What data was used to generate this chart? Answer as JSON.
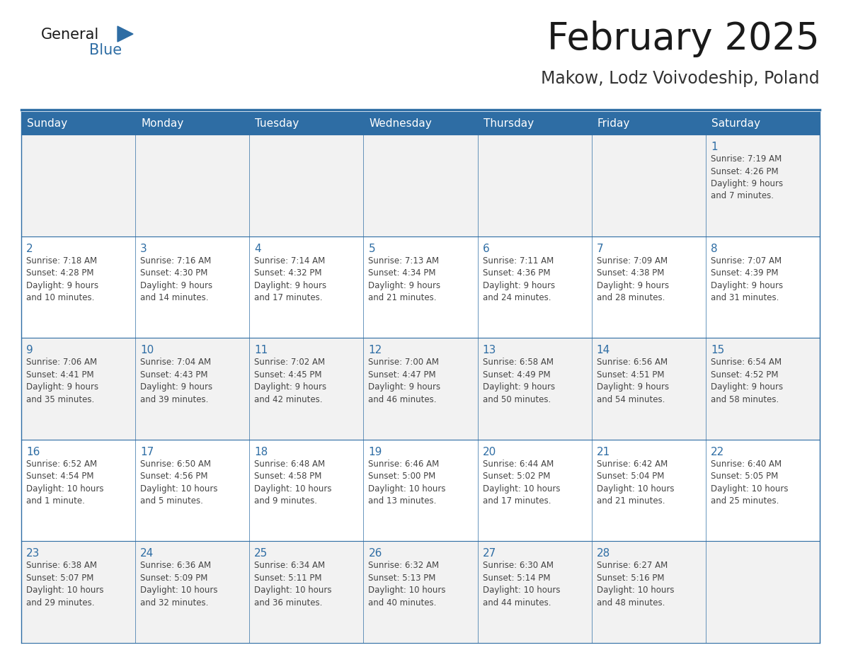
{
  "title": "February 2025",
  "subtitle": "Makow, Lodz Voivodeship, Poland",
  "days_of_week": [
    "Sunday",
    "Monday",
    "Tuesday",
    "Wednesday",
    "Thursday",
    "Friday",
    "Saturday"
  ],
  "header_bg": "#2E6DA4",
  "header_text_color": "#FFFFFF",
  "cell_bg_odd": "#F2F2F2",
  "cell_bg_even": "#FFFFFF",
  "day_number_color": "#2E6DA4",
  "cell_text_color": "#444444",
  "border_color": "#2E6DA4",
  "title_color": "#1a1a1a",
  "subtitle_color": "#333333",
  "logo_general_color": "#1a1a1a",
  "logo_blue_color": "#2E6DA4",
  "logo_triangle_color": "#2E6DA4",
  "calendar_data": [
    [
      {
        "day": null,
        "info": ""
      },
      {
        "day": null,
        "info": ""
      },
      {
        "day": null,
        "info": ""
      },
      {
        "day": null,
        "info": ""
      },
      {
        "day": null,
        "info": ""
      },
      {
        "day": null,
        "info": ""
      },
      {
        "day": 1,
        "info": "Sunrise: 7:19 AM\nSunset: 4:26 PM\nDaylight: 9 hours\nand 7 minutes."
      }
    ],
    [
      {
        "day": 2,
        "info": "Sunrise: 7:18 AM\nSunset: 4:28 PM\nDaylight: 9 hours\nand 10 minutes."
      },
      {
        "day": 3,
        "info": "Sunrise: 7:16 AM\nSunset: 4:30 PM\nDaylight: 9 hours\nand 14 minutes."
      },
      {
        "day": 4,
        "info": "Sunrise: 7:14 AM\nSunset: 4:32 PM\nDaylight: 9 hours\nand 17 minutes."
      },
      {
        "day": 5,
        "info": "Sunrise: 7:13 AM\nSunset: 4:34 PM\nDaylight: 9 hours\nand 21 minutes."
      },
      {
        "day": 6,
        "info": "Sunrise: 7:11 AM\nSunset: 4:36 PM\nDaylight: 9 hours\nand 24 minutes."
      },
      {
        "day": 7,
        "info": "Sunrise: 7:09 AM\nSunset: 4:38 PM\nDaylight: 9 hours\nand 28 minutes."
      },
      {
        "day": 8,
        "info": "Sunrise: 7:07 AM\nSunset: 4:39 PM\nDaylight: 9 hours\nand 31 minutes."
      }
    ],
    [
      {
        "day": 9,
        "info": "Sunrise: 7:06 AM\nSunset: 4:41 PM\nDaylight: 9 hours\nand 35 minutes."
      },
      {
        "day": 10,
        "info": "Sunrise: 7:04 AM\nSunset: 4:43 PM\nDaylight: 9 hours\nand 39 minutes."
      },
      {
        "day": 11,
        "info": "Sunrise: 7:02 AM\nSunset: 4:45 PM\nDaylight: 9 hours\nand 42 minutes."
      },
      {
        "day": 12,
        "info": "Sunrise: 7:00 AM\nSunset: 4:47 PM\nDaylight: 9 hours\nand 46 minutes."
      },
      {
        "day": 13,
        "info": "Sunrise: 6:58 AM\nSunset: 4:49 PM\nDaylight: 9 hours\nand 50 minutes."
      },
      {
        "day": 14,
        "info": "Sunrise: 6:56 AM\nSunset: 4:51 PM\nDaylight: 9 hours\nand 54 minutes."
      },
      {
        "day": 15,
        "info": "Sunrise: 6:54 AM\nSunset: 4:52 PM\nDaylight: 9 hours\nand 58 minutes."
      }
    ],
    [
      {
        "day": 16,
        "info": "Sunrise: 6:52 AM\nSunset: 4:54 PM\nDaylight: 10 hours\nand 1 minute."
      },
      {
        "day": 17,
        "info": "Sunrise: 6:50 AM\nSunset: 4:56 PM\nDaylight: 10 hours\nand 5 minutes."
      },
      {
        "day": 18,
        "info": "Sunrise: 6:48 AM\nSunset: 4:58 PM\nDaylight: 10 hours\nand 9 minutes."
      },
      {
        "day": 19,
        "info": "Sunrise: 6:46 AM\nSunset: 5:00 PM\nDaylight: 10 hours\nand 13 minutes."
      },
      {
        "day": 20,
        "info": "Sunrise: 6:44 AM\nSunset: 5:02 PM\nDaylight: 10 hours\nand 17 minutes."
      },
      {
        "day": 21,
        "info": "Sunrise: 6:42 AM\nSunset: 5:04 PM\nDaylight: 10 hours\nand 21 minutes."
      },
      {
        "day": 22,
        "info": "Sunrise: 6:40 AM\nSunset: 5:05 PM\nDaylight: 10 hours\nand 25 minutes."
      }
    ],
    [
      {
        "day": 23,
        "info": "Sunrise: 6:38 AM\nSunset: 5:07 PM\nDaylight: 10 hours\nand 29 minutes."
      },
      {
        "day": 24,
        "info": "Sunrise: 6:36 AM\nSunset: 5:09 PM\nDaylight: 10 hours\nand 32 minutes."
      },
      {
        "day": 25,
        "info": "Sunrise: 6:34 AM\nSunset: 5:11 PM\nDaylight: 10 hours\nand 36 minutes."
      },
      {
        "day": 26,
        "info": "Sunrise: 6:32 AM\nSunset: 5:13 PM\nDaylight: 10 hours\nand 40 minutes."
      },
      {
        "day": 27,
        "info": "Sunrise: 6:30 AM\nSunset: 5:14 PM\nDaylight: 10 hours\nand 44 minutes."
      },
      {
        "day": 28,
        "info": "Sunrise: 6:27 AM\nSunset: 5:16 PM\nDaylight: 10 hours\nand 48 minutes."
      },
      {
        "day": null,
        "info": ""
      }
    ]
  ]
}
